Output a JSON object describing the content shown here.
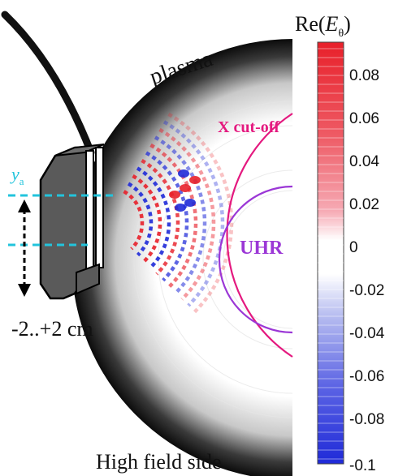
{
  "labels": {
    "plasma": "plasma",
    "x_cutoff": "X cut-off",
    "uhr": "UHR",
    "ya_symbol": "y",
    "ya_subscript": "a",
    "range": "-2..+2 cm",
    "bottom": "High field side",
    "colorbar_title_prefix": "Re(",
    "colorbar_title_symbol": "E",
    "colorbar_title_subscript": "θ",
    "colorbar_title_suffix": ")"
  },
  "colorbar": {
    "ticks": [
      "0.08",
      "0.06",
      "0.04",
      "0.02",
      "0",
      "-0.02",
      "-0.04",
      "-0.06",
      "-0.08",
      "-0.1"
    ]
  },
  "colors": {
    "x_cutoff": "#e4197f",
    "uhr": "#9b37d6",
    "antenna_markers": "#22c4dc",
    "positive": "#e8202a",
    "negative": "#1f2ad8"
  }
}
